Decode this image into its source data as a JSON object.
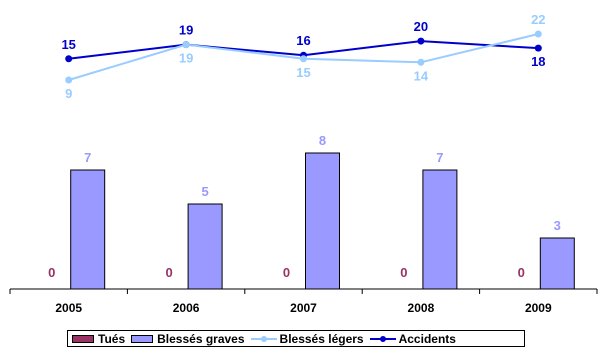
{
  "chart_data": {
    "type": "bar",
    "categories": [
      "2005",
      "2006",
      "2007",
      "2008",
      "2009"
    ],
    "series": [
      {
        "name": "Tués",
        "kind": "bar",
        "values": [
          0,
          0,
          0,
          0,
          0
        ],
        "color": "#993366"
      },
      {
        "name": "Blessés graves",
        "kind": "bar",
        "values": [
          7,
          5,
          8,
          7,
          3
        ],
        "color": "#9999ff"
      },
      {
        "name": "Blessés légers",
        "kind": "line",
        "values": [
          9,
          19,
          15,
          14,
          22
        ],
        "color": "#99ccff"
      },
      {
        "name": "Accidents",
        "kind": "line",
        "values": [
          15,
          19,
          16,
          20,
          18
        ],
        "color": "#0000cc"
      }
    ],
    "legend_position": "bottom",
    "grid": false
  }
}
